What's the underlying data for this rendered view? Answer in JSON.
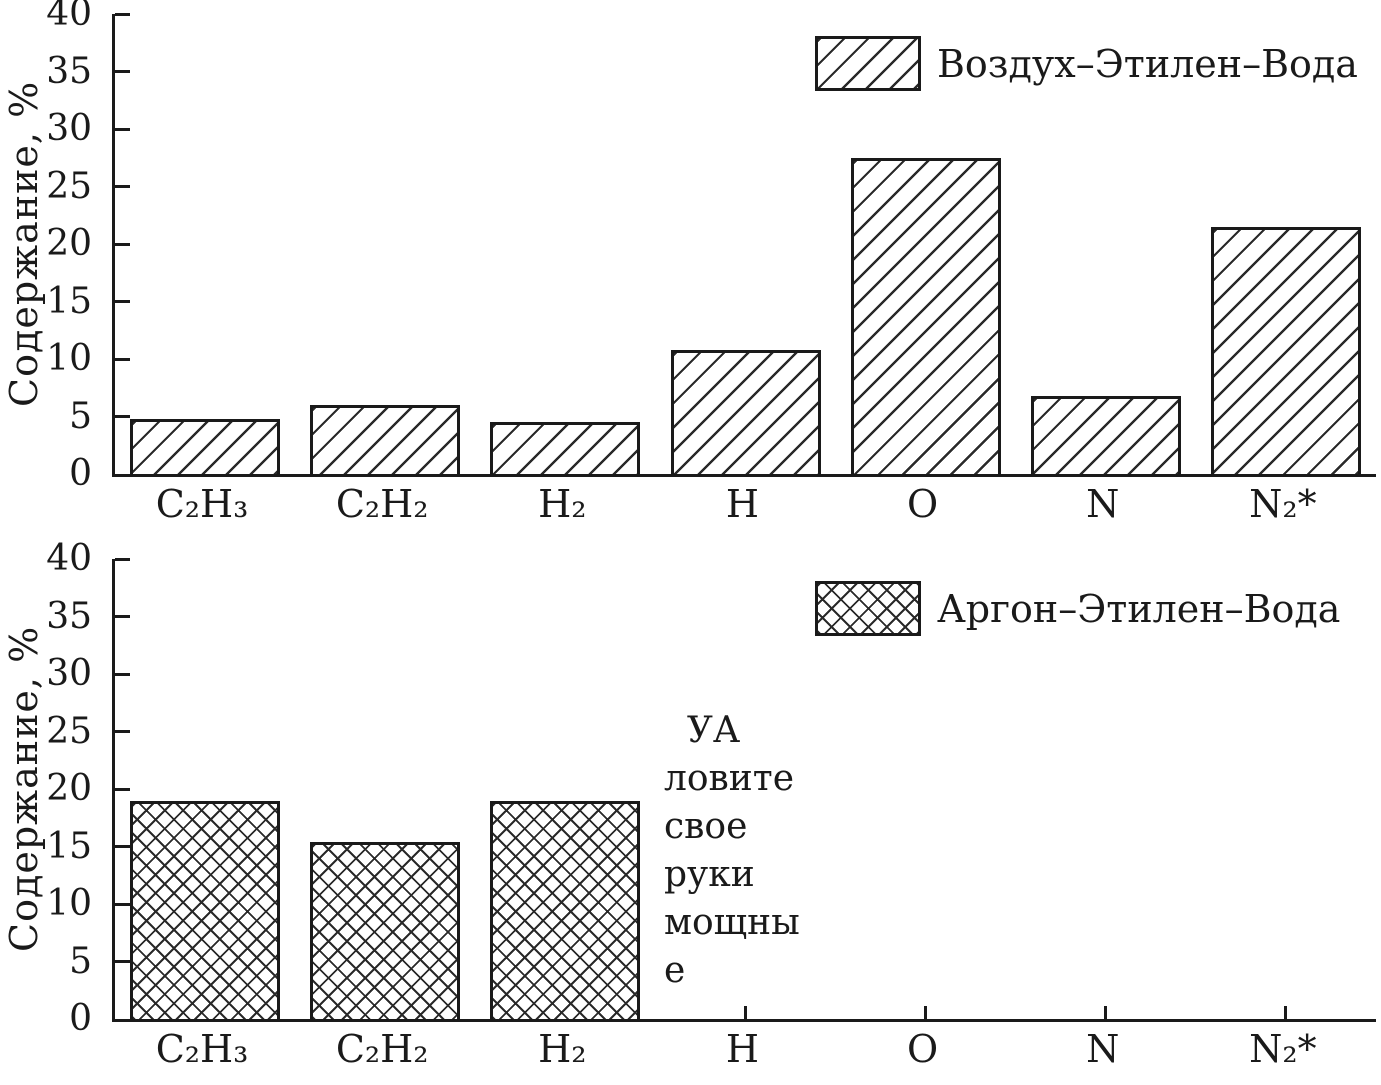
{
  "colors": {
    "ink": "#1a1a1a",
    "background": "#ffffff"
  },
  "chart_data": [
    {
      "type": "bar",
      "title": "",
      "ylabel": "Содержание, %",
      "legend": "Воздух–Этилен–Вода",
      "legend_position": "top-right",
      "hatch": "diagonal",
      "grid": false,
      "categories": [
        "C₂H₃",
        "C₂H₂",
        "H₂",
        "H",
        "O",
        "N",
        "N₂*"
      ],
      "values": [
        4.8,
        6.0,
        4.5,
        10.8,
        27.5,
        6.8,
        21.5
      ],
      "ylim": [
        0,
        40
      ],
      "ytick_step": 5,
      "ytick_labels": [
        "0",
        "5",
        "10",
        "15",
        "20",
        "25",
        "30",
        "35",
        "40"
      ]
    },
    {
      "type": "bar",
      "title": "",
      "ylabel": "Содержание, %",
      "legend": "Аргон–Этилен–Вода",
      "legend_position": "top-right",
      "hatch": "cross",
      "grid": false,
      "categories": [
        "C₂H₃",
        "C₂H₂",
        "H₂",
        "H",
        "O",
        "N",
        "N₂*"
      ],
      "values": [
        19.0,
        15.4,
        19.0,
        0,
        0,
        0,
        0
      ],
      "ylim": [
        0,
        40
      ],
      "ytick_step": 5,
      "ytick_labels": [
        "0",
        "5",
        "10",
        "15",
        "20",
        "25",
        "30",
        "35",
        "40"
      ],
      "annotation": "  УА\nловите\nсвое\nруки\nмощны\nе"
    }
  ]
}
